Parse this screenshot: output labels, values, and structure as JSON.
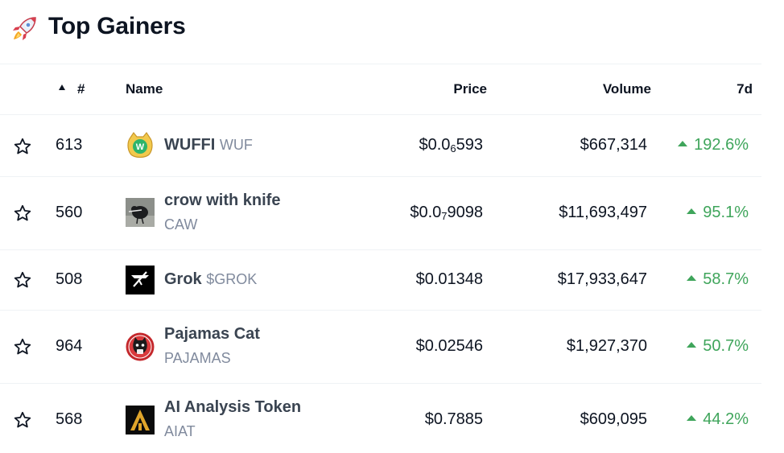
{
  "header": {
    "title": "Top Gainers",
    "icon": "rocket-icon"
  },
  "columns": {
    "rank": "#",
    "name": "Name",
    "price": "Price",
    "volume": "Volume",
    "change": "7d",
    "sort": "ascending"
  },
  "colors": {
    "positive": "#3fa55b",
    "text": "#0d1421",
    "muted": "#808a9d",
    "divider": "#eff2f5"
  },
  "rows": [
    {
      "rank": "613",
      "name": "WUFFI",
      "symbol": "WUF",
      "price_prefix": "$0.0",
      "price_zeros": "6",
      "price_digits": "593",
      "volume": "$667,314",
      "change": "192.6%",
      "logo": "wuffi-logo"
    },
    {
      "rank": "560",
      "name": "crow with knife",
      "symbol": "CAW",
      "price_prefix": "$0.0",
      "price_zeros": "7",
      "price_digits": "9098",
      "volume": "$11,693,497",
      "change": "95.1%",
      "logo": "crow-logo"
    },
    {
      "rank": "508",
      "name": "Grok",
      "symbol": "$GROK",
      "price": "$0.01348",
      "volume": "$17,933,647",
      "change": "58.7%",
      "logo": "grok-logo"
    },
    {
      "rank": "964",
      "name": "Pajamas Cat",
      "symbol": "PAJAMAS",
      "price": "$0.02546",
      "volume": "$1,927,370",
      "change": "50.7%",
      "logo": "pajamas-cat-logo"
    },
    {
      "rank": "568",
      "name": "AI Analysis Token",
      "symbol": "AIAT",
      "price": "$0.7885",
      "volume": "$609,095",
      "change": "44.2%",
      "logo": "aiat-logo"
    }
  ]
}
